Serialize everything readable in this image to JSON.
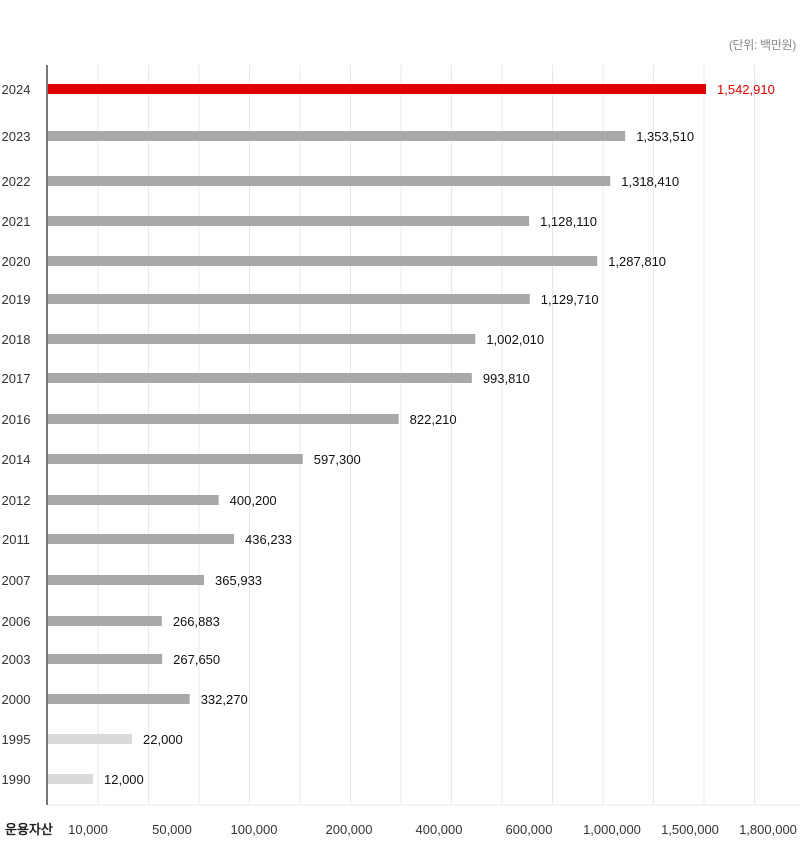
{
  "unit_note": "(단위: 백만원)",
  "x_axis_title": "운용자산",
  "colors": {
    "highlight": "#e00000",
    "normal": "#a8a8a8",
    "early": "#dadada",
    "grid": "#e9e9e9",
    "axis": "#777777"
  },
  "chart_data": {
    "type": "bar",
    "orientation": "horizontal",
    "title": "",
    "xlabel": "운용자산",
    "ylabel": "",
    "x_ticks": [
      "10,000",
      "50,000",
      "100,000",
      "200,000",
      "400,000",
      "600,000",
      "1,000,000",
      "1,500,000",
      "1,800,000"
    ],
    "x_scale": "non-linear",
    "grid": true,
    "categories": [
      "2024",
      "2023",
      "2022",
      "2021",
      "2020",
      "2019",
      "2018",
      "2017",
      "2016",
      "2014",
      "2012",
      "2011",
      "2007",
      "2006",
      "2003",
      "2000",
      "1995",
      "1990"
    ],
    "values": [
      1542910,
      1353510,
      1318410,
      1128110,
      1287810,
      1129710,
      1002010,
      993810,
      822210,
      597300,
      400200,
      436233,
      365933,
      266883,
      267650,
      332270,
      22000,
      12000
    ],
    "labels": [
      "1,542,910",
      "1,353,510",
      "1,318,410",
      "1,128,110",
      "1,287,810",
      "1,129,710",
      "1,002,010",
      "993,810",
      "822,210",
      "597,300",
      "400,200",
      "436,233",
      "365,933",
      "266,883",
      "267,650",
      "332,270",
      "22,000",
      "12,000"
    ],
    "highlight": "2024",
    "light_categories": [
      "1995",
      "1990"
    ]
  }
}
